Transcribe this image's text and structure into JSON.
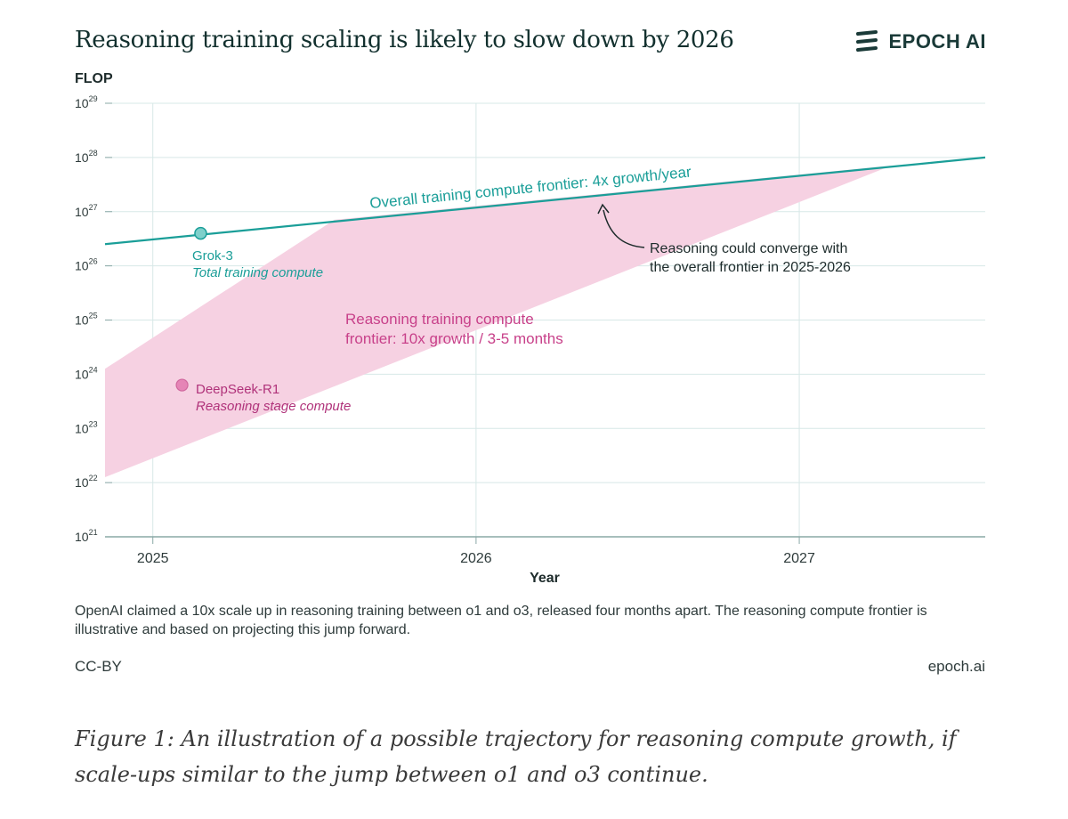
{
  "header": {
    "title": "Reasoning training scaling is likely to slow down by 2026",
    "brand": "EPOCH AI"
  },
  "footer": {
    "note": "OpenAI claimed a 10x scale up in reasoning training between o1 and o3, released four months apart. The reasoning compute frontier is illustrative and based on projecting this jump forward.",
    "license": "CC-BY",
    "site": "epoch.ai"
  },
  "caption": "Figure 1: An illustration of a possible trajectory for reasoning compute growth, if scale-ups similar to the jump between o1 and o3 continue.",
  "colors": {
    "teal": "#1a9e98",
    "pink_fill": "#f6d1e2",
    "pink_text": "#c8418a",
    "pink_dot": "#e585b6",
    "grid": "#d7e8e7",
    "axis": "#8aa8a6"
  },
  "chart_data": {
    "type": "line",
    "ylabel": "FLOP",
    "xlabel": "Year",
    "y_scale": "log",
    "xlim": [
      "2024-11-08",
      "2027-07-30"
    ],
    "ylim_exponents": [
      21,
      29
    ],
    "x_ticks": [
      "2025",
      "2026",
      "2027"
    ],
    "y_ticks": [
      {
        "base": "10",
        "exp": "21"
      },
      {
        "base": "10",
        "exp": "22"
      },
      {
        "base": "10",
        "exp": "23"
      },
      {
        "base": "10",
        "exp": "24"
      },
      {
        "base": "10",
        "exp": "25"
      },
      {
        "base": "10",
        "exp": "26"
      },
      {
        "base": "10",
        "exp": "27"
      },
      {
        "base": "10",
        "exp": "28"
      },
      {
        "base": "10",
        "exp": "29"
      }
    ],
    "grid": true,
    "series": [
      {
        "label": "Overall training compute frontier: 4x growth/year",
        "type": "line",
        "points": [
          {
            "x": "2024-11-08",
            "y_exp": 26.4
          },
          {
            "x": "2027-07-30",
            "y_exp": 28.0
          }
        ]
      },
      {
        "label": "Reasoning training compute frontier: 10x growth / 3-5 months",
        "type": "band",
        "upper": [
          {
            "x": "2024-11-08",
            "y_exp": 24.1
          },
          {
            "x": "2025-07-25",
            "y_exp": 26.85
          }
        ],
        "lower": [
          {
            "x": "2024-11-08",
            "y_exp": 22.1
          },
          {
            "x": "2027-04-15",
            "y_exp": 27.85
          }
        ]
      }
    ],
    "points": [
      {
        "name": "Grok-3",
        "sublabel": "Total training compute",
        "x": "2025-02-24",
        "y_exp": 26.6
      },
      {
        "name": "DeepSeek-R1",
        "sublabel": "Reasoning stage compute",
        "x": "2025-02-03",
        "y_exp": 23.8
      }
    ],
    "annotation": "Reasoning could converge with the overall frontier in 2025-2026"
  }
}
